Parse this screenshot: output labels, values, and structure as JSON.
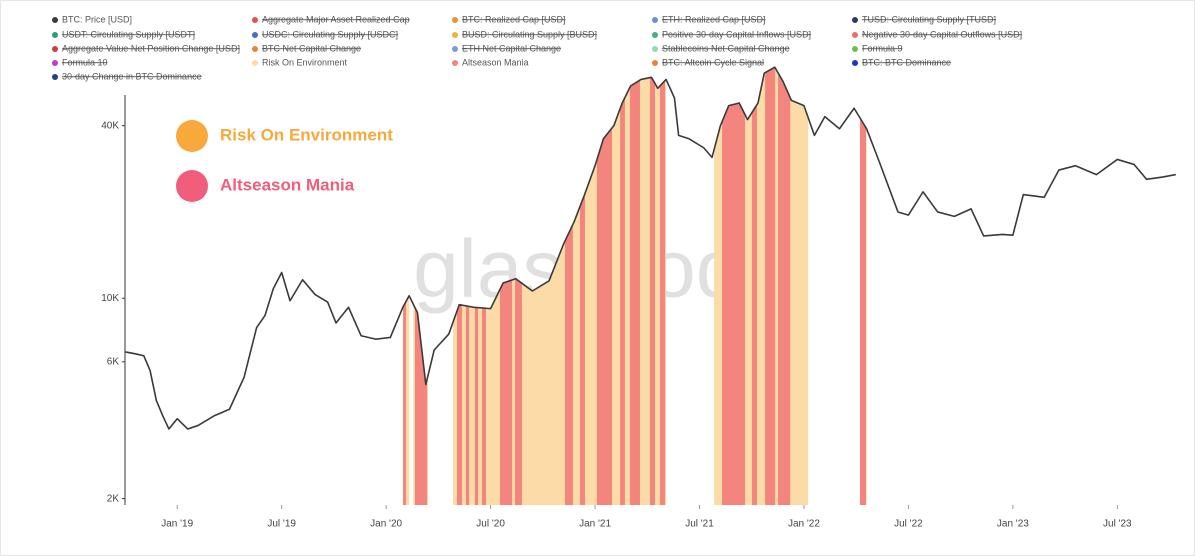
{
  "chart_data": {
    "type": "line",
    "watermark": "glassnode",
    "ylog": true,
    "xlim": [
      2018.75,
      2023.8
    ],
    "ylim": [
      1900,
      70000
    ],
    "yticks": [
      {
        "value": 2000,
        "label": "2K"
      },
      {
        "value": 6000,
        "label": "6K"
      },
      {
        "value": 10000,
        "label": "10K"
      },
      {
        "value": 40000,
        "label": "40K"
      }
    ],
    "xticks": [
      {
        "value": 2019,
        "label": "Jan '19"
      },
      {
        "value": 2019.5,
        "label": "Jul '19"
      },
      {
        "value": 2020,
        "label": "Jan '20"
      },
      {
        "value": 2020.5,
        "label": "Jul '20"
      },
      {
        "value": 2021,
        "label": "Jan '21"
      },
      {
        "value": 2021.5,
        "label": "Jul '21"
      },
      {
        "value": 2022,
        "label": "Jan '22"
      },
      {
        "value": 2022.5,
        "label": "Jul '22"
      },
      {
        "value": 2023,
        "label": "Jan '23"
      },
      {
        "value": 2023.5,
        "label": "Jul '23"
      }
    ],
    "annotations": [
      {
        "text": "Risk On Environment",
        "color": "#f8a93b"
      },
      {
        "text": "Altseason Mania",
        "color": "#f35d7c"
      }
    ],
    "x": [
      2018.75,
      2018.8,
      2018.84,
      2018.87,
      2018.9,
      2018.93,
      2018.96,
      2019.0,
      2019.05,
      2019.1,
      2019.18,
      2019.25,
      2019.32,
      2019.38,
      2019.42,
      2019.46,
      2019.5,
      2019.54,
      2019.6,
      2019.66,
      2019.72,
      2019.76,
      2019.82,
      2019.88,
      2019.95,
      2020.02,
      2020.08,
      2020.11,
      2020.15,
      2020.19,
      2020.23,
      2020.3,
      2020.35,
      2020.42,
      2020.5,
      2020.56,
      2020.62,
      2020.7,
      2020.78,
      2020.85,
      2020.9,
      2020.95,
      2021.0,
      2021.04,
      2021.09,
      2021.13,
      2021.17,
      2021.22,
      2021.27,
      2021.3,
      2021.34,
      2021.38,
      2021.4,
      2021.45,
      2021.52,
      2021.56,
      2021.6,
      2021.64,
      2021.69,
      2021.73,
      2021.78,
      2021.81,
      2021.86,
      2021.9,
      2021.94,
      2022.0,
      2022.05,
      2022.1,
      2022.17,
      2022.24,
      2022.3,
      2022.36,
      2022.45,
      2022.5,
      2022.57,
      2022.64,
      2022.72,
      2022.8,
      2022.86,
      2022.95,
      2023.0,
      2023.05,
      2023.15,
      2023.22,
      2023.3,
      2023.4,
      2023.5,
      2023.58,
      2023.64,
      2023.72,
      2023.78
    ],
    "series": [
      {
        "name": "BTC: Price [USD]",
        "color": "#3a3a3a",
        "hidden": false,
        "values": [
          6500,
          6400,
          6300,
          5600,
          4400,
          3900,
          3500,
          3800,
          3500,
          3600,
          3900,
          4100,
          5300,
          7900,
          8700,
          10800,
          12300,
          9800,
          11600,
          10300,
          9700,
          8200,
          9300,
          7400,
          7200,
          7300,
          9300,
          10200,
          8900,
          5000,
          6600,
          7500,
          9500,
          9300,
          9200,
          11300,
          11700,
          10600,
          11500,
          15500,
          18500,
          23000,
          29000,
          36000,
          40000,
          48000,
          55000,
          58000,
          59000,
          54000,
          58000,
          50000,
          37000,
          36000,
          33500,
          31000,
          40000,
          47000,
          48000,
          42000,
          48000,
          61000,
          64000,
          57000,
          49000,
          47000,
          37000,
          43000,
          39000,
          46000,
          39000,
          30000,
          20000,
          19500,
          23500,
          20000,
          19300,
          20500,
          16500,
          16700,
          16600,
          23000,
          22500,
          28000,
          29000,
          27000,
          30500,
          29300,
          26000,
          26500,
          27000
        ]
      },
      {
        "name": "Aggregate Major Asset Realized Cap",
        "color": "#e0534c",
        "hidden": true
      },
      {
        "name": "BTC: Realized Cap [USD]",
        "color": "#e8903a",
        "hidden": true
      },
      {
        "name": "ETH: Realized Cap [USD]",
        "color": "#6a8fd9",
        "hidden": true
      },
      {
        "name": "TUSD: Circulating Supply [TUSD]",
        "color": "#2b3a6e",
        "hidden": true
      },
      {
        "name": "USDT: Circulating Supply [USDT]",
        "color": "#2a9d76",
        "hidden": true
      },
      {
        "name": "USDC: Circulating Supply [USDC]",
        "color": "#4a6fc0",
        "hidden": true
      },
      {
        "name": "BUSD: Circulating Supply [BUSD]",
        "color": "#e8b63a",
        "hidden": true
      },
      {
        "name": "Positive 30-day Capital Inflows [USD]",
        "color": "#3bb37a",
        "hidden": true
      },
      {
        "name": "Negative 30-day Capital Outflows [USD]",
        "color": "#ea7066",
        "hidden": true
      },
      {
        "name": "Aggregate Value Net Position Change [USD]",
        "color": "#d63a3a",
        "hidden": true
      },
      {
        "name": "BTC Net Capital Change",
        "color": "#e8833a",
        "hidden": true
      },
      {
        "name": "ETH Net Capital Change",
        "color": "#7a9ad8",
        "hidden": true
      },
      {
        "name": "Stablecoins Net Capital Change",
        "color": "#8fdcb0",
        "hidden": true
      },
      {
        "name": "Formula 9",
        "color": "#6cc04a",
        "hidden": true
      },
      {
        "name": "Formula 10",
        "color": "#c03ad0",
        "hidden": true
      },
      {
        "name": "Risk On Environment",
        "color": "#fcdba6",
        "hidden": false,
        "intervals": [
          [
            2020.08,
            2020.11
          ],
          [
            2020.13,
            2020.2
          ],
          [
            2020.32,
            2021.34
          ],
          [
            2021.57,
            2022.02
          ],
          [
            2022.27,
            2022.3
          ]
        ]
      },
      {
        "name": "Altseason Mania",
        "color": "#f3857e",
        "hidden": false,
        "intervals": [
          [
            2020.081,
            2020.095
          ],
          [
            2020.138,
            2020.196
          ],
          [
            2020.339,
            2020.363
          ],
          [
            2020.382,
            2020.397
          ],
          [
            2020.425,
            2020.44
          ],
          [
            2020.459,
            2020.478
          ],
          [
            2020.545,
            2020.603
          ],
          [
            2020.617,
            2020.65
          ],
          [
            2020.856,
            2020.894
          ],
          [
            2020.928,
            2020.952
          ],
          [
            2021.009,
            2021.081
          ],
          [
            2021.12,
            2021.143
          ],
          [
            2021.167,
            2021.215
          ],
          [
            2021.263,
            2021.287
          ],
          [
            2021.311,
            2021.335
          ],
          [
            2021.608,
            2021.718
          ],
          [
            2021.751,
            2021.775
          ],
          [
            2021.814,
            2021.862
          ],
          [
            2021.876,
            2021.934
          ],
          [
            2022.268,
            2022.297
          ]
        ]
      },
      {
        "name": "BTC: Altcoin Cycle Signal",
        "color": "#e8833a",
        "hidden": true
      },
      {
        "name": "BTC: BTC Dominance",
        "color": "#2233cc",
        "hidden": true
      },
      {
        "name": "30-day Change in BTC Dominance",
        "color": "#2a3a8e",
        "hidden": true
      }
    ]
  }
}
